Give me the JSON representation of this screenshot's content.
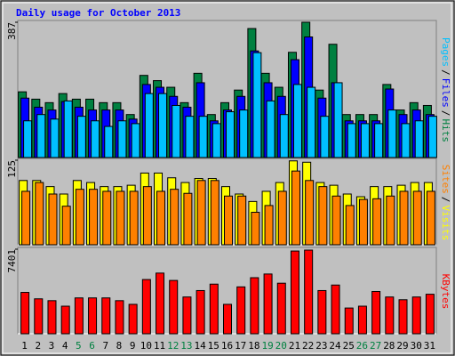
{
  "chart_data": [
    {
      "type": "bar",
      "title": "Daily usage for October 2013",
      "categories": [
        "1",
        "2",
        "3",
        "4",
        "5",
        "6",
        "7",
        "8",
        "9",
        "10",
        "11",
        "12",
        "13",
        "14",
        "15",
        "16",
        "17",
        "18",
        "19",
        "20",
        "21",
        "22",
        "23",
        "24",
        "25",
        "26",
        "27",
        "28",
        "29",
        "30",
        "31"
      ],
      "weekends": [
        "5",
        "6",
        "12",
        "13",
        "19",
        "20",
        "26",
        "27"
      ],
      "weekend_color": "#008040",
      "separator": "/",
      "ylim": [
        0,
        387
      ],
      "yticks": [
        387
      ],
      "series": [
        {
          "name": "Hits",
          "color": "#008040",
          "values": [
            188,
            167,
            157,
            183,
            167,
            167,
            157,
            157,
            123,
            235,
            220,
            201,
            157,
            241,
            123,
            157,
            193,
            369,
            241,
            201,
            301,
            387,
            193,
            324,
            123,
            123,
            123,
            209,
            136,
            157,
            149
          ]
        },
        {
          "name": "Files",
          "color": "#0000ff",
          "values": [
            170,
            144,
            136,
            160,
            144,
            136,
            136,
            136,
            110,
            209,
            201,
            175,
            144,
            214,
            105,
            136,
            175,
            305,
            214,
            175,
            280,
            345,
            170,
            214,
            105,
            105,
            105,
            196,
            123,
            136,
            123
          ]
        },
        {
          "name": "Pages",
          "color": "#00c0ff",
          "values": [
            105,
            123,
            110,
            162,
            118,
            105,
            89,
            105,
            97,
            183,
            183,
            149,
            118,
            118,
            97,
            131,
            136,
            300,
            162,
            123,
            209,
            201,
            118,
            214,
            97,
            97,
            97,
            136,
            97,
            105,
            118
          ]
        }
      ]
    },
    {
      "type": "bar",
      "ylim": [
        0,
        125
      ],
      "yticks": [
        125
      ],
      "separator": "/",
      "series": [
        {
          "name": "Visits",
          "color": "#ffff00",
          "values": [
            95,
            95,
            86,
            75,
            95,
            92,
            86,
            86,
            88,
            106,
            106,
            99,
            92,
            98,
            98,
            86,
            75,
            64,
            79,
            92,
            124,
            122,
            92,
            88,
            75,
            71,
            86,
            86,
            88,
            92,
            92
          ]
        },
        {
          "name": "Sites",
          "color": "#ff8000",
          "values": [
            79,
            92,
            75,
            57,
            82,
            82,
            79,
            79,
            79,
            86,
            79,
            82,
            76,
            95,
            95,
            72,
            72,
            48,
            58,
            79,
            109,
            95,
            86,
            72,
            58,
            67,
            68,
            72,
            79,
            79,
            79
          ]
        }
      ]
    },
    {
      "type": "bar",
      "ylim": [
        0,
        7401
      ],
      "yticks": [
        7401
      ],
      "series": [
        {
          "name": "KBytes",
          "color": "#ff0000",
          "values": [
            3620,
            3057,
            2896,
            2413,
            3137,
            3137,
            3137,
            2896,
            2574,
            4746,
            5310,
            4666,
            3218,
            3781,
            4344,
            2574,
            4103,
            4907,
            5229,
            4425,
            7240,
            7321,
            3781,
            4264,
            2252,
            2413,
            3700,
            3218,
            2977,
            3218,
            3459
          ]
        }
      ]
    }
  ]
}
